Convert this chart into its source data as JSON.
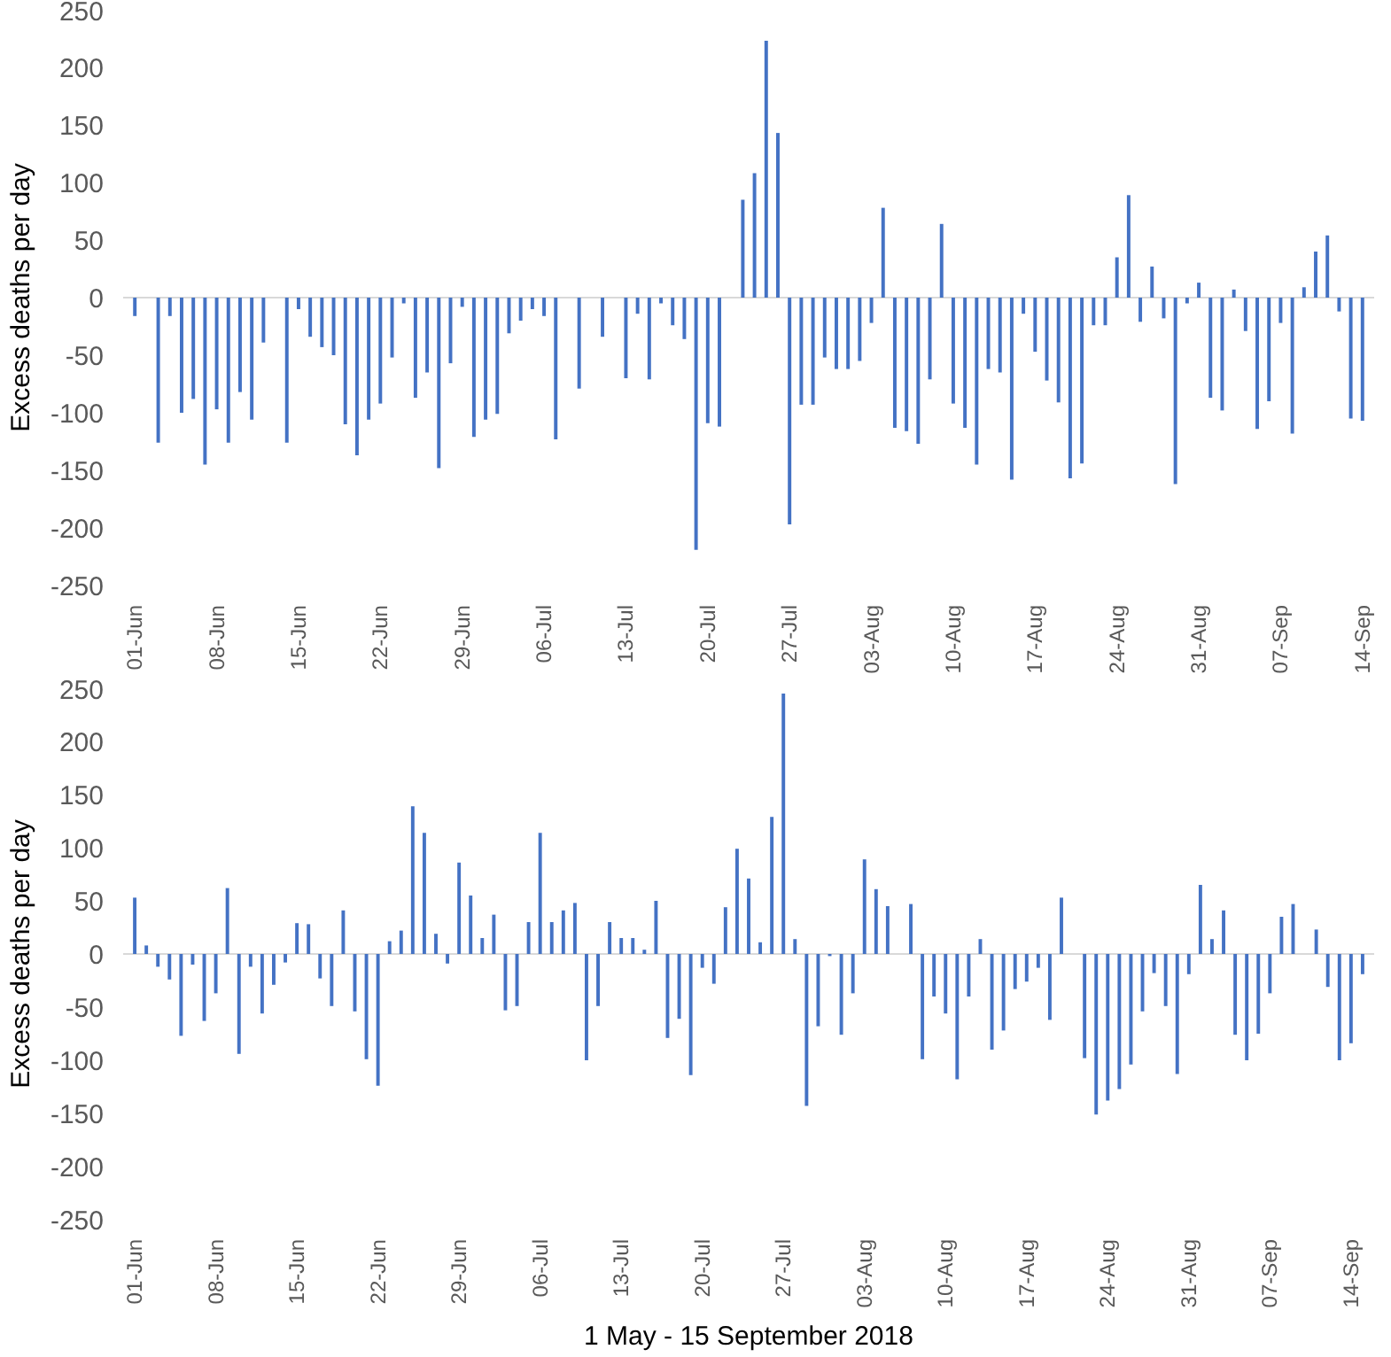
{
  "chart_data": [
    {
      "type": "bar",
      "ylabel": "Excess deaths per day",
      "color": "#4472c4",
      "ylim": [
        -250,
        250
      ],
      "yticks": [
        -250,
        -200,
        -150,
        -100,
        -50,
        0,
        50,
        100,
        150,
        200,
        250
      ],
      "categories": [
        "01-Jun",
        null,
        null,
        null,
        null,
        null,
        null,
        "08-Jun",
        null,
        null,
        null,
        null,
        null,
        null,
        "15-Jun",
        null,
        null,
        null,
        null,
        null,
        null,
        "22-Jun",
        null,
        null,
        null,
        null,
        null,
        null,
        "29-Jun",
        null,
        null,
        null,
        null,
        null,
        null,
        "06-Jul",
        null,
        null,
        null,
        null,
        null,
        null,
        "13-Jul",
        null,
        null,
        null,
        null,
        null,
        null,
        "20-Jul",
        null,
        null,
        null,
        null,
        null,
        null,
        "27-Jul",
        null,
        null,
        null,
        null,
        null,
        null,
        "03-Aug",
        null,
        null,
        null,
        null,
        null,
        null,
        "10-Aug",
        null,
        null,
        null,
        null,
        null,
        null,
        "17-Aug",
        null,
        null,
        null,
        null,
        null,
        null,
        "24-Aug",
        null,
        null,
        null,
        null,
        null,
        null,
        "31-Aug",
        null,
        null,
        null,
        null,
        null,
        null,
        "07-Sep",
        null,
        null,
        null,
        null,
        null,
        null,
        "14-Sep"
      ],
      "values": [
        -16,
        0,
        -126,
        -16,
        -100,
        -88,
        -145,
        -97,
        -126,
        -82,
        -106,
        -39,
        0,
        -126,
        -10,
        -34,
        -43,
        -50,
        -110,
        -137,
        -106,
        -92,
        -52,
        -5,
        -87,
        -65,
        -148,
        -57,
        -8,
        -121,
        -106,
        -101,
        -31,
        -20,
        -10,
        -16,
        -123,
        0,
        -79,
        0,
        -34,
        0,
        -70,
        -14,
        -71,
        -5,
        -24,
        -36,
        -219,
        -109,
        -112,
        0,
        85,
        108,
        223,
        143,
        -197,
        -93,
        -93,
        -52,
        -62,
        -62,
        -55,
        -22,
        78,
        -113,
        -116,
        -127,
        -71,
        64,
        -92,
        -113,
        -145,
        -62,
        -65,
        -158,
        -14,
        -47,
        -72,
        -91,
        -157,
        -144,
        -24,
        -24,
        35,
        89,
        -21,
        27,
        -18,
        -162,
        -5,
        13,
        -87,
        -98,
        7,
        -29,
        -114,
        -90,
        -22,
        -118,
        9,
        40,
        54,
        -12,
        -105,
        -107
      ]
    },
    {
      "type": "bar",
      "ylabel": "Excess deaths per day",
      "xlabel": "1 May - 15 September 2018",
      "color": "#4472c4",
      "ylim": [
        -250,
        250
      ],
      "yticks": [
        -250,
        -200,
        -150,
        -100,
        -50,
        0,
        50,
        100,
        150,
        200,
        250
      ],
      "categories": [
        "01-Jun",
        null,
        null,
        null,
        null,
        null,
        null,
        "08-Jun",
        null,
        null,
        null,
        null,
        null,
        null,
        "15-Jun",
        null,
        null,
        null,
        null,
        null,
        null,
        "22-Jun",
        null,
        null,
        null,
        null,
        null,
        null,
        "29-Jun",
        null,
        null,
        null,
        null,
        null,
        null,
        "06-Jul",
        null,
        null,
        null,
        null,
        null,
        null,
        "13-Jul",
        null,
        null,
        null,
        null,
        null,
        null,
        "20-Jul",
        null,
        null,
        null,
        null,
        null,
        null,
        "27-Jul",
        null,
        null,
        null,
        null,
        null,
        null,
        "03-Aug",
        null,
        null,
        null,
        null,
        null,
        null,
        "10-Aug",
        null,
        null,
        null,
        null,
        null,
        null,
        "17-Aug",
        null,
        null,
        null,
        null,
        null,
        null,
        "24-Aug",
        null,
        null,
        null,
        null,
        null,
        null,
        "31-Aug",
        null,
        null,
        null,
        null,
        null,
        null,
        "07-Sep",
        null,
        null,
        null,
        null,
        null,
        null,
        "14-Sep",
        null
      ],
      "values": [
        53,
        8,
        -12,
        -24,
        -77,
        -10,
        -63,
        -37,
        62,
        -94,
        -12,
        -56,
        -29,
        -8,
        29,
        28,
        -23,
        -49,
        41,
        -54,
        -99,
        -124,
        12,
        22,
        139,
        114,
        19,
        -9,
        86,
        55,
        15,
        37,
        -53,
        -49,
        30,
        114,
        30,
        41,
        48,
        -100,
        -49,
        30,
        15,
        15,
        4,
        50,
        -79,
        -61,
        -114,
        -13,
        -28,
        44,
        99,
        71,
        11,
        129,
        245,
        14,
        -143,
        -68,
        -2,
        -76,
        -37,
        89,
        61,
        45,
        0,
        47,
        -99,
        -40,
        -56,
        -118,
        -40,
        14,
        -90,
        -72,
        -33,
        -26,
        -13,
        -62,
        53,
        0,
        -98,
        -151,
        -138,
        -127,
        -104,
        -54,
        -18,
        -49,
        -113,
        -19,
        65,
        14,
        41,
        -76,
        -100,
        -75,
        -37,
        35,
        47,
        0,
        23,
        -31,
        -100,
        -84,
        -19
      ]
    }
  ]
}
